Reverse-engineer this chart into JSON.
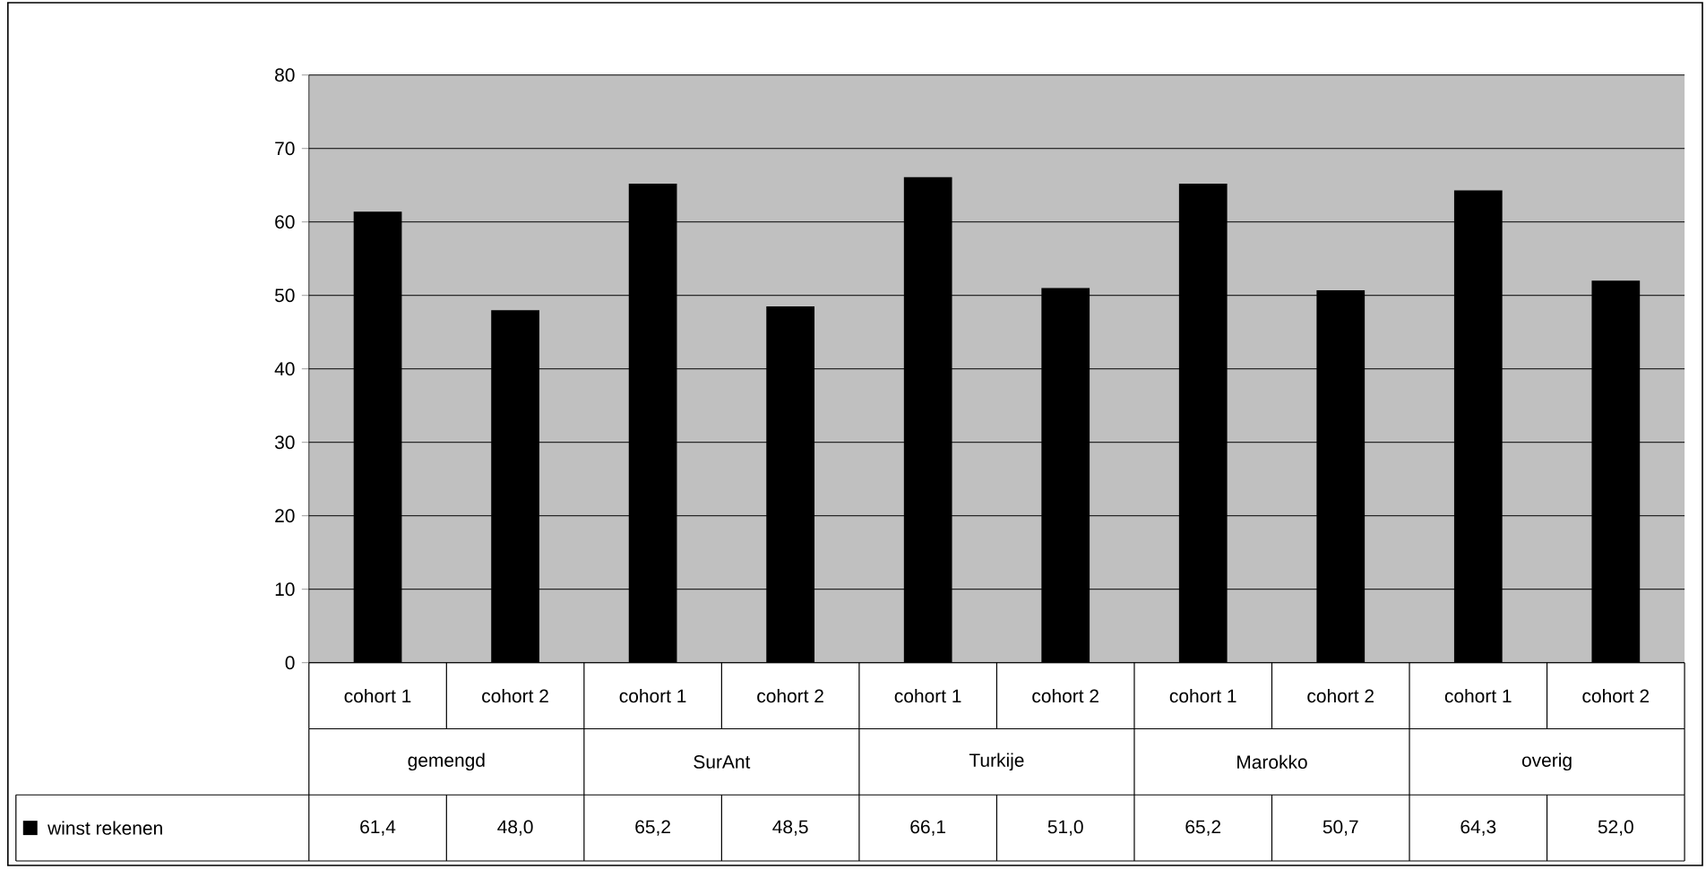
{
  "chart_data": {
    "type": "bar",
    "categories": [
      "cohort 1",
      "cohort 2",
      "cohort 1",
      "cohort 2",
      "cohort 1",
      "cohort 2",
      "cohort 1",
      "cohort 2",
      "cohort 1",
      "cohort 2"
    ],
    "series": [
      {
        "name": "winst rekenen",
        "color": "#000000",
        "values": [
          61.4,
          48.0,
          65.2,
          48.5,
          66.1,
          51.0,
          65.2,
          50.7,
          64.3,
          52.0
        ],
        "value_labels": [
          "61,4",
          "48,0",
          "65,2",
          "48,5",
          "66,1",
          "51,0",
          "65,2",
          "50,7",
          "64,3",
          "52,0"
        ]
      }
    ],
    "ylim": [
      0,
      80
    ],
    "yticks": [
      0,
      10,
      20,
      30,
      40,
      50,
      60,
      70,
      80
    ],
    "grid": "y",
    "legend": "bottom left",
    "annotations": [
      "gemengd",
      "SurAnt",
      "Turkije",
      "Marokko",
      "overig"
    ]
  }
}
